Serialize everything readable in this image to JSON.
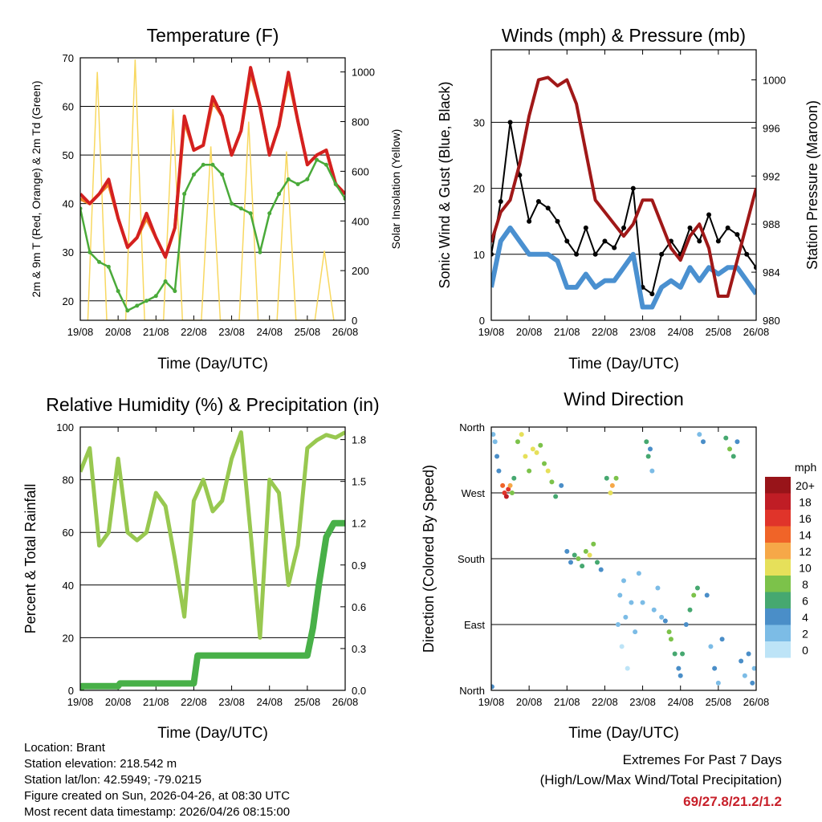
{
  "footer": {
    "location": "Location: Brant",
    "elevation": "Station elevation: 218.542 m",
    "latlon": "Station lat/lon: 42.5949; -79.0215",
    "created": "Figure created on Sun, 2026-04-26, at 08:30 UTC",
    "recent": "Most recent data timestamp: 2026/04/26 08:15:00",
    "extremes_title": "Extremes For Past 7 Days",
    "extremes_sub": "(High/Low/Max Wind/Total Precipitation)",
    "extremes_values": "69/27.8/21.2/1.2"
  },
  "chart_data": [
    {
      "type": "line",
      "title": "Temperature (F)",
      "xlabel": "Time (Day/UTC)",
      "ylabel": "2m & 9m T (Red, Orange) & 2m Td (Green)",
      "ylabel_right": "Solar Insolation (Yellow)",
      "xticks": [
        "19/08",
        "20/08",
        "21/08",
        "22/08",
        "23/08",
        "24/08",
        "25/08",
        "26/08"
      ],
      "xlim": [
        0,
        7
      ],
      "ylim": [
        16,
        70
      ],
      "ylim_right": [
        0,
        1057
      ],
      "yticks": [
        20,
        30,
        40,
        50,
        60,
        70
      ],
      "yticks_right": [
        0,
        200,
        400,
        600,
        800,
        1000
      ],
      "x": [
        0,
        0.25,
        0.5,
        0.75,
        1,
        1.25,
        1.5,
        1.75,
        2,
        2.25,
        2.5,
        2.75,
        3,
        3.25,
        3.5,
        3.75,
        4,
        4.25,
        4.5,
        4.75,
        5,
        5.25,
        5.5,
        5.75,
        6,
        6.25,
        6.5,
        6.75,
        7
      ],
      "series": [
        {
          "name": "9m T",
          "color": "#f08a2a",
          "values": [
            41,
            40,
            42,
            44,
            37,
            31,
            33,
            37,
            33,
            29,
            35,
            57,
            51,
            52,
            61,
            58,
            50,
            55,
            67,
            60,
            50,
            56,
            66,
            57,
            48,
            50,
            51,
            44,
            42
          ]
        },
        {
          "name": "2m T",
          "color": "#d42020",
          "values": [
            42,
            40,
            42,
            45,
            37,
            31,
            33,
            38,
            33,
            29,
            35,
            58,
            51,
            52,
            62,
            58,
            50,
            55,
            68,
            60,
            50,
            56,
            67,
            57,
            48,
            50,
            51,
            44,
            42
          ]
        },
        {
          "name": "2m Td",
          "color": "#4aaa3a",
          "values": [
            39,
            30,
            28,
            27,
            22,
            18,
            19,
            20,
            21,
            24,
            22,
            42,
            46,
            48,
            48,
            46,
            40,
            39,
            38,
            30,
            38,
            42,
            45,
            44,
            45,
            49,
            48,
            44,
            41
          ]
        }
      ],
      "solar": {
        "name": "Solar Insolation",
        "color": "#f8d860",
        "x": [
          0.2,
          0.45,
          0.7,
          1.2,
          1.45,
          1.7,
          2.2,
          2.45,
          2.7,
          3.2,
          3.45,
          3.7,
          4.2,
          4.45,
          4.7,
          5.2,
          5.45,
          5.7,
          6.2,
          6.45,
          6.7
        ],
        "values": [
          0,
          1000,
          0,
          0,
          1050,
          0,
          0,
          850,
          0,
          0,
          700,
          0,
          0,
          800,
          0,
          0,
          680,
          0,
          0,
          280,
          0
        ]
      }
    },
    {
      "type": "line",
      "title": "Winds (mph) & Pressure (mb)",
      "xlabel": "Time (Day/UTC)",
      "ylabel": "Sonic Wind & Gust (Blue, Black)",
      "ylabel_right": "Station Pressure (Maroon)",
      "xticks": [
        "19/08",
        "20/08",
        "21/08",
        "22/08",
        "23/08",
        "24/08",
        "25/08",
        "26/08"
      ],
      "xlim": [
        0,
        7
      ],
      "ylim": [
        0,
        41
      ],
      "ylim_right": [
        980,
        1002.5
      ],
      "yticks": [
        0,
        10,
        20,
        30
      ],
      "yticks_right": [
        980,
        984,
        988,
        992,
        996,
        1000
      ],
      "x": [
        0,
        0.25,
        0.5,
        0.75,
        1,
        1.25,
        1.5,
        1.75,
        2,
        2.25,
        2.5,
        2.75,
        3,
        3.25,
        3.5,
        3.75,
        4,
        4.25,
        4.5,
        4.75,
        5,
        5.25,
        5.5,
        5.75,
        6,
        6.25,
        6.5,
        6.75,
        7
      ],
      "series": [
        {
          "name": "Gust",
          "color": "#000000",
          "values": [
            10,
            18,
            30,
            22,
            15,
            18,
            17,
            15,
            12,
            10,
            14,
            10,
            12,
            11,
            14,
            20,
            5,
            4,
            10,
            12,
            10,
            14,
            12,
            16,
            12,
            14,
            13,
            10,
            8
          ]
        },
        {
          "name": "Sonic Wind",
          "color": "#4a90d0",
          "values": [
            5,
            12,
            14,
            12,
            10,
            10,
            10,
            9,
            5,
            5,
            7,
            5,
            6,
            6,
            8,
            10,
            2,
            2,
            5,
            6,
            5,
            8,
            6,
            8,
            7,
            8,
            8,
            6,
            4
          ]
        },
        {
          "name": "Station Pressure",
          "axis": "right",
          "color": "#a01818",
          "values": [
            986.5,
            989,
            990,
            993,
            997,
            1000,
            1000.2,
            999.5,
            1000,
            998,
            994,
            990,
            989,
            988,
            987,
            988,
            990,
            990,
            988,
            986,
            985,
            987,
            988,
            986,
            982,
            982,
            985,
            988,
            991
          ]
        }
      ]
    },
    {
      "type": "line",
      "title": "Relative Humidity (%) & Precipitation (in)",
      "xlabel": "Time (Day/UTC)",
      "ylabel": "Percent & Total Rainfall",
      "xticks": [
        "19/08",
        "20/08",
        "21/08",
        "22/08",
        "23/08",
        "24/08",
        "25/08",
        "26/08"
      ],
      "xlim": [
        0,
        7
      ],
      "ylim": [
        0,
        100
      ],
      "ylim_right": [
        0,
        1.89
      ],
      "yticks": [
        0,
        20,
        40,
        60,
        80,
        100
      ],
      "yticks_right": [
        "0.0",
        "0.3",
        "0.6",
        "0.9",
        "1.2",
        "1.5",
        "1.8"
      ],
      "series": [
        {
          "name": "Relative Humidity",
          "color": "#98c850",
          "x": [
            0,
            0.25,
            0.5,
            0.75,
            1,
            1.25,
            1.5,
            1.75,
            2,
            2.25,
            2.5,
            2.75,
            3,
            3.25,
            3.5,
            3.75,
            4,
            4.25,
            4.5,
            4.75,
            5,
            5.25,
            5.5,
            5.75,
            6,
            6.25,
            6.5,
            6.75,
            7
          ],
          "values": [
            83,
            92,
            55,
            60,
            88,
            60,
            57,
            60,
            75,
            70,
            50,
            28,
            72,
            80,
            68,
            72,
            88,
            98,
            60,
            20,
            80,
            75,
            40,
            55,
            92,
            95,
            97,
            96,
            98
          ]
        },
        {
          "name": "Total Precipitation",
          "axis": "right",
          "color": "#48b048",
          "x": [
            0,
            0.05,
            1,
            1.05,
            3,
            3.1,
            6,
            6.15,
            6.3,
            6.5,
            6.7,
            7
          ],
          "values": [
            0,
            0.03,
            0.03,
            0.05,
            0.05,
            0.25,
            0.25,
            0.45,
            0.75,
            1.1,
            1.2,
            1.2
          ]
        }
      ]
    },
    {
      "type": "scatter",
      "title": "Wind Direction",
      "xlabel": "Time (Day/UTC)",
      "ylabel": "Direction (Colored By Speed)",
      "xticks": [
        "19/08",
        "20/08",
        "21/08",
        "22/08",
        "23/08",
        "24/08",
        "25/08",
        "26/08"
      ],
      "xlim": [
        0,
        7
      ],
      "ylim": [
        0,
        360
      ],
      "yticks": [
        {
          "v": 0,
          "label": "North"
        },
        {
          "v": 90,
          "label": "East"
        },
        {
          "v": 180,
          "label": "South"
        },
        {
          "v": 270,
          "label": "West"
        },
        {
          "v": 360,
          "label": "North"
        }
      ],
      "legend": {
        "title": "mph",
        "placement": "right",
        "bins": [
          {
            "label": "20+",
            "color": "#981419"
          },
          {
            "label": "18",
            "color": "#c01d25"
          },
          {
            "label": "16",
            "color": "#e0342a"
          },
          {
            "label": "14",
            "color": "#f06428"
          },
          {
            "label": "12",
            "color": "#f6a848"
          },
          {
            "label": "10",
            "color": "#e6e05a"
          },
          {
            "label": "8",
            "color": "#7cc24a"
          },
          {
            "label": "6",
            "color": "#46a870"
          },
          {
            "label": "4",
            "color": "#4a8ec8"
          },
          {
            "label": "2",
            "color": "#7cbce6"
          },
          {
            "label": "0",
            "color": "#bde4f7"
          }
        ]
      },
      "points": [
        [
          0.02,
          5,
          4
        ],
        [
          0.05,
          350,
          3
        ],
        [
          0.1,
          340,
          3
        ],
        [
          0.15,
          320,
          4
        ],
        [
          0.2,
          300,
          5
        ],
        [
          0.3,
          280,
          14
        ],
        [
          0.35,
          270,
          17
        ],
        [
          0.4,
          265,
          18
        ],
        [
          0.45,
          275,
          16
        ],
        [
          0.5,
          280,
          13
        ],
        [
          0.55,
          270,
          9
        ],
        [
          0.6,
          290,
          7
        ],
        [
          0.7,
          340,
          8
        ],
        [
          0.8,
          350,
          11
        ],
        [
          0.9,
          320,
          10
        ],
        [
          1.0,
          300,
          9
        ],
        [
          1.1,
          330,
          11
        ],
        [
          1.2,
          325,
          10
        ],
        [
          1.3,
          335,
          9
        ],
        [
          1.4,
          310,
          9
        ],
        [
          1.5,
          300,
          10
        ],
        [
          1.6,
          285,
          8
        ],
        [
          1.7,
          265,
          7
        ],
        [
          1.85,
          280,
          5
        ],
        [
          2.0,
          190,
          4
        ],
        [
          2.1,
          175,
          5
        ],
        [
          2.2,
          185,
          6
        ],
        [
          2.3,
          180,
          8
        ],
        [
          2.4,
          170,
          6
        ],
        [
          2.5,
          190,
          9
        ],
        [
          2.6,
          185,
          11
        ],
        [
          2.7,
          200,
          8
        ],
        [
          2.8,
          175,
          7
        ],
        [
          2.9,
          165,
          5
        ],
        [
          3.05,
          290,
          6
        ],
        [
          3.15,
          270,
          10
        ],
        [
          3.2,
          280,
          12
        ],
        [
          3.3,
          290,
          8
        ],
        [
          3.35,
          90,
          3
        ],
        [
          3.4,
          130,
          2
        ],
        [
          3.45,
          60,
          1
        ],
        [
          3.5,
          150,
          3
        ],
        [
          3.55,
          100,
          2
        ],
        [
          3.6,
          30,
          1
        ],
        [
          3.7,
          120,
          3
        ],
        [
          3.8,
          80,
          2
        ],
        [
          3.9,
          160,
          3
        ],
        [
          4.0,
          120,
          2
        ],
        [
          4.1,
          340,
          6
        ],
        [
          4.15,
          320,
          7
        ],
        [
          4.2,
          330,
          5
        ],
        [
          4.25,
          300,
          3
        ],
        [
          4.3,
          110,
          3
        ],
        [
          4.4,
          140,
          2
        ],
        [
          4.5,
          100,
          3
        ],
        [
          4.6,
          95,
          5
        ],
        [
          4.7,
          80,
          9
        ],
        [
          4.75,
          70,
          8
        ],
        [
          4.85,
          50,
          6
        ],
        [
          4.95,
          30,
          5
        ],
        [
          5.0,
          20,
          4
        ],
        [
          5.05,
          50,
          6
        ],
        [
          5.15,
          90,
          5
        ],
        [
          5.25,
          110,
          7
        ],
        [
          5.35,
          130,
          8
        ],
        [
          5.45,
          140,
          7
        ],
        [
          5.5,
          350,
          3
        ],
        [
          5.6,
          340,
          4
        ],
        [
          5.7,
          130,
          4
        ],
        [
          5.8,
          60,
          3
        ],
        [
          5.9,
          30,
          4
        ],
        [
          6.0,
          10,
          3
        ],
        [
          6.1,
          70,
          4
        ],
        [
          6.2,
          345,
          6
        ],
        [
          6.3,
          330,
          8
        ],
        [
          6.4,
          320,
          7
        ],
        [
          6.5,
          340,
          5
        ],
        [
          6.6,
          40,
          4
        ],
        [
          6.7,
          20,
          3
        ],
        [
          6.8,
          50,
          5
        ],
        [
          6.9,
          10,
          4
        ],
        [
          6.95,
          30,
          3
        ]
      ]
    }
  ]
}
